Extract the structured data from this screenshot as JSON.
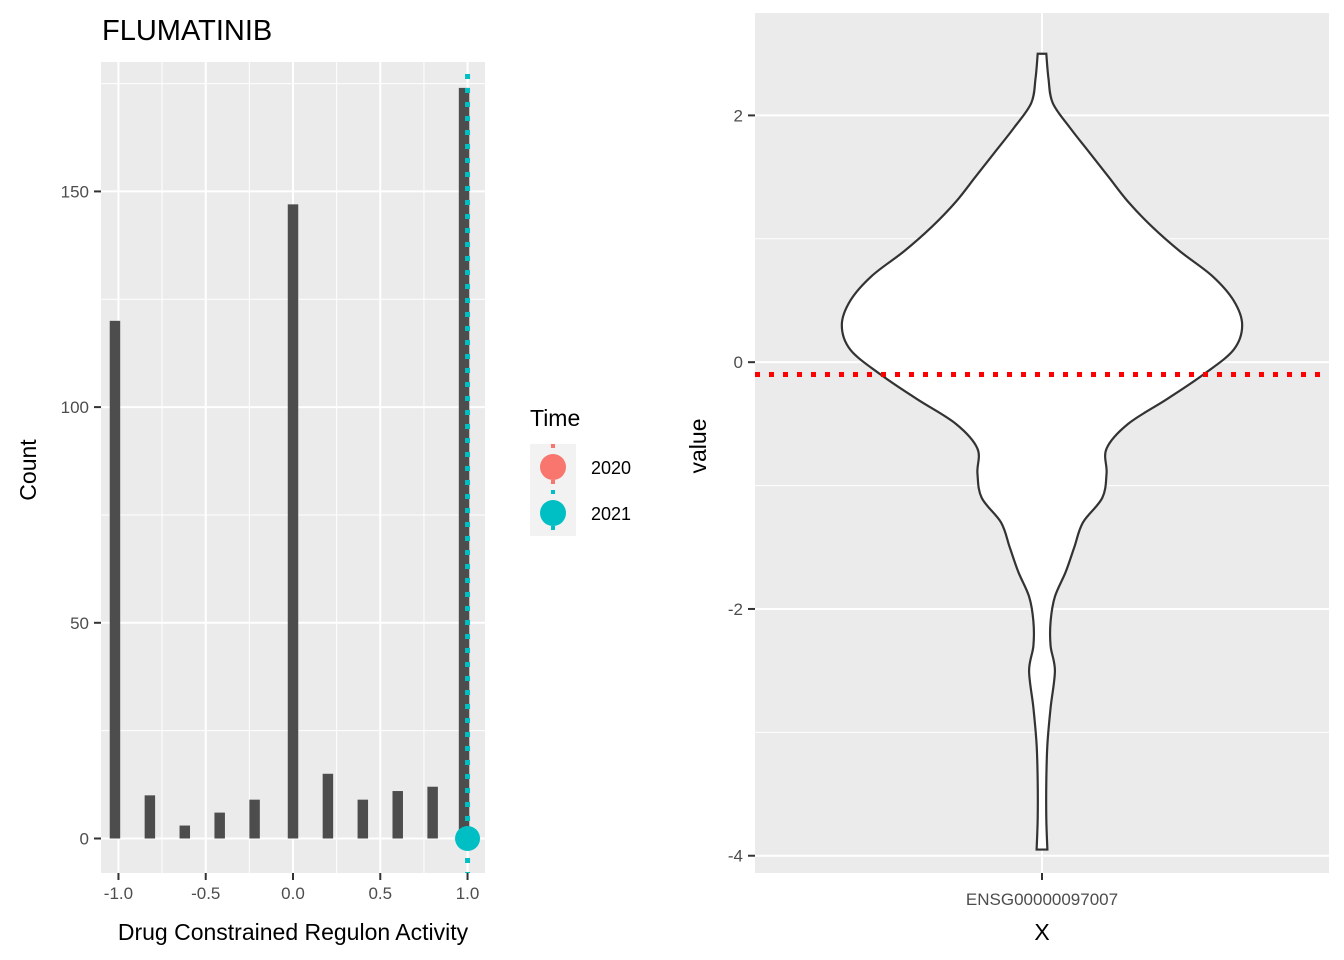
{
  "chart_data": [
    {
      "type": "bar",
      "title": "FLUMATINIB",
      "xlabel": "Drug Constrained Regulon Activity",
      "ylabel": "Count",
      "xlim": [
        -1.1,
        1.1
      ],
      "ylim": [
        -8,
        180
      ],
      "x_ticks": [
        -1.0,
        -0.5,
        0.0,
        0.5,
        1.0
      ],
      "x_tick_labels": [
        "-1.0",
        "-0.5",
        "0.0",
        "0.5",
        "1.0"
      ],
      "y_ticks": [
        0,
        50,
        100,
        150
      ],
      "y_tick_labels": [
        "0",
        "50",
        "100",
        "150"
      ],
      "grid": true,
      "bar_width": 0.06,
      "bars": [
        {
          "x": -1.02,
          "count": 120
        },
        {
          "x": -0.82,
          "count": 10
        },
        {
          "x": -0.62,
          "count": 3
        },
        {
          "x": -0.42,
          "count": 6
        },
        {
          "x": -0.22,
          "count": 9
        },
        {
          "x": 0.0,
          "count": 147
        },
        {
          "x": 0.2,
          "count": 15
        },
        {
          "x": 0.4,
          "count": 9
        },
        {
          "x": 0.6,
          "count": 11
        },
        {
          "x": 0.8,
          "count": 12
        },
        {
          "x": 0.98,
          "count": 174
        }
      ],
      "vlines": [
        {
          "series": "2021",
          "x": 1.0,
          "linetype": "dotted"
        }
      ],
      "points": [
        {
          "series": "2021",
          "x": 1.0,
          "y": 0
        }
      ],
      "legend": {
        "title": "Time",
        "position": "right",
        "entries": [
          {
            "name": "2020",
            "color": "#F8766D"
          },
          {
            "name": "2021",
            "color": "#00BFC4"
          }
        ]
      },
      "colors": {
        "bar": "#4d4d4d",
        "panel": "#ebebeb",
        "grid": "#ffffff"
      }
    },
    {
      "type": "violin",
      "xlabel": "X",
      "ylabel": "value",
      "categories": [
        "ENSG00000097007"
      ],
      "ylim": [
        -4.14,
        2.83
      ],
      "y_ticks": [
        -4,
        -2,
        0,
        2
      ],
      "y_tick_labels": [
        "-4",
        "-2",
        "0",
        "2"
      ],
      "grid": true,
      "violin_profile": [
        {
          "y": 2.5,
          "half_width": 0.02
        },
        {
          "y": 2.3,
          "half_width": 0.03
        },
        {
          "y": 2.1,
          "half_width": 0.05
        },
        {
          "y": 1.9,
          "half_width": 0.13
        },
        {
          "y": 1.7,
          "half_width": 0.22
        },
        {
          "y": 1.5,
          "half_width": 0.31
        },
        {
          "y": 1.3,
          "half_width": 0.4
        },
        {
          "y": 1.1,
          "half_width": 0.51
        },
        {
          "y": 0.9,
          "half_width": 0.64
        },
        {
          "y": 0.7,
          "half_width": 0.79
        },
        {
          "y": 0.5,
          "half_width": 0.89
        },
        {
          "y": 0.3,
          "half_width": 0.93
        },
        {
          "y": 0.1,
          "half_width": 0.89
        },
        {
          "y": -0.1,
          "half_width": 0.75
        },
        {
          "y": -0.3,
          "half_width": 0.58
        },
        {
          "y": -0.5,
          "half_width": 0.4
        },
        {
          "y": -0.7,
          "half_width": 0.3
        },
        {
          "y": -0.9,
          "half_width": 0.3
        },
        {
          "y": -1.1,
          "half_width": 0.28
        },
        {
          "y": -1.3,
          "half_width": 0.19
        },
        {
          "y": -1.5,
          "half_width": 0.15
        },
        {
          "y": -1.7,
          "half_width": 0.11
        },
        {
          "y": -1.9,
          "half_width": 0.06
        },
        {
          "y": -2.1,
          "half_width": 0.04
        },
        {
          "y": -2.3,
          "half_width": 0.04
        },
        {
          "y": -2.5,
          "half_width": 0.06
        },
        {
          "y": -2.8,
          "half_width": 0.04
        },
        {
          "y": -3.1,
          "half_width": 0.025
        },
        {
          "y": -3.4,
          "half_width": 0.02
        },
        {
          "y": -3.7,
          "half_width": 0.02
        },
        {
          "y": -3.95,
          "half_width": 0.025
        }
      ],
      "hline": {
        "y": -0.1,
        "color": "#ff0000",
        "linetype": "dotted"
      },
      "colors": {
        "violin_fill": "#ffffff",
        "violin_outline": "#333333",
        "panel": "#ebebeb",
        "grid": "#ffffff"
      }
    }
  ]
}
